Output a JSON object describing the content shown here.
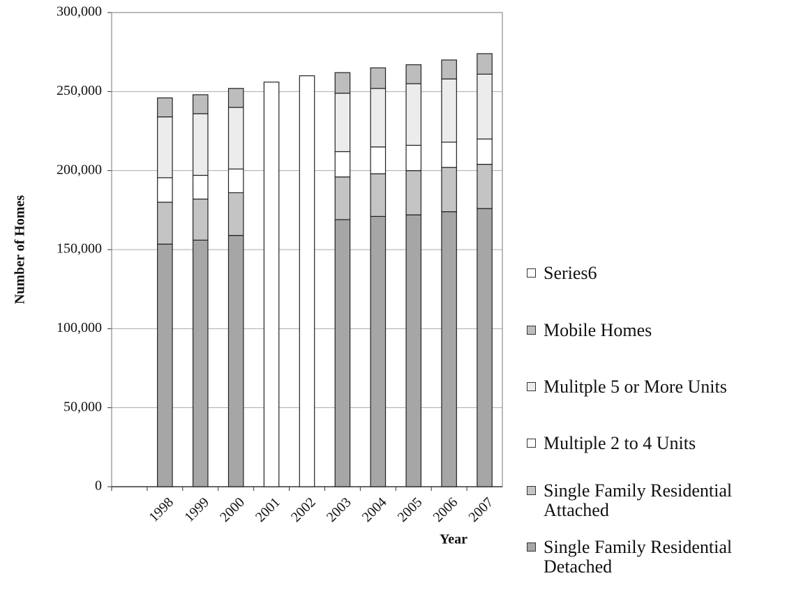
{
  "chart_data": {
    "type": "stacked_bar",
    "y_label": "Number of Homes",
    "x_label": "Year",
    "categories": [
      null,
      "1998",
      "1999",
      "2000",
      "2001",
      "2002",
      "2003",
      "2004",
      "2005",
      "2006",
      "2007"
    ],
    "series": [
      {
        "name": "Single Family Residential Detached",
        "color": "#a6a6a6",
        "values": [
          null,
          153500,
          156000,
          159000,
          null,
          null,
          169000,
          171000,
          172000,
          174000,
          176000
        ]
      },
      {
        "name": "Single Family Residential Attached",
        "color": "#c4c4c4",
        "values": [
          null,
          26500,
          26000,
          27000,
          null,
          null,
          27000,
          27000,
          28000,
          28000,
          28000
        ]
      },
      {
        "name": "Multiple 2 to 4 Units",
        "color": "#ffffff",
        "values": [
          null,
          15500,
          15000,
          15000,
          null,
          null,
          16000,
          17000,
          16000,
          16000,
          16000
        ]
      },
      {
        "name": "Mulitple 5 or More Units",
        "color": "#ececec",
        "values": [
          null,
          38500,
          39000,
          39000,
          null,
          null,
          37000,
          37000,
          39000,
          40000,
          41000
        ]
      },
      {
        "name": "Mobile Homes",
        "color": "#bdbdbd",
        "values": [
          null,
          12000,
          12000,
          12000,
          null,
          null,
          13000,
          13000,
          12000,
          12000,
          13000
        ]
      },
      {
        "name": "Series6",
        "color": "#ffffff",
        "values": [
          null,
          null,
          null,
          null,
          256000,
          260000,
          null,
          null,
          null,
          null,
          null
        ]
      }
    ],
    "ylim": [
      0,
      300000
    ],
    "yticks": [
      0,
      {
        "value": 50000,
        "label": "50,000"
      },
      {
        "value": 100000,
        "label": "100,000"
      },
      {
        "value": 150000,
        "label": "150,000"
      },
      {
        "value": 200000,
        "label": "200,000"
      },
      {
        "value": 250000,
        "label": "250,000"
      },
      {
        "value": 300000,
        "label": "300,000"
      }
    ],
    "grid": true,
    "legend": "right"
  }
}
